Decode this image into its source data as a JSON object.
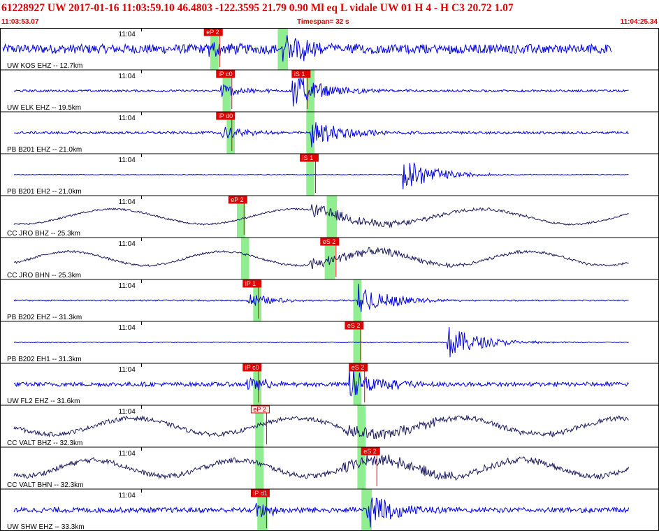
{
  "header": {
    "title": "61228927 UW 2017-01-16 11:03:59.10   46.4803 -122.3595  21.79  0.90 Ml  eq  L vidale   UW 01  H   4  -  H C3   20.72  1.07",
    "start_time": "11:03:53.07",
    "timespan": "Timespan=  32 s",
    "end_time": "11:04:25.34"
  },
  "colors": {
    "border": "#000000",
    "pick_box": "#e00000",
    "pick_box_weak": "#ffe4e4",
    "p_window": "#90ee90",
    "trace_strong": "#0000e0",
    "trace_long": "#1a1a5e"
  },
  "chart_data": {
    "type": "line",
    "title": "61228927 UW 2017-01-16 11:03:59.10",
    "time_range_s": [
      0,
      32.27
    ],
    "tick_label": "11:04",
    "tick_time_s": 6.93,
    "traces": [
      {
        "label": "UW KOS EHZ -- 12.7km",
        "pick": "eP 2",
        "pick_time_s": 10.0,
        "s_pick": "",
        "s_time_s": null,
        "window": [
          10.3,
          10.7
        ],
        "window2": [
          13.6,
          14.1
        ],
        "color": "trace_strong",
        "style": "noisy",
        "amp": 0.38,
        "noise": 0.22
      },
      {
        "label": "UW ELK EHZ -- 19.5km",
        "pick": "iP c0",
        "pick_time_s": 10.6,
        "s_pick": "iS 1",
        "s_time_s": 14.3,
        "window": [
          10.9,
          11.3
        ],
        "window2": [
          15.0,
          15.4
        ],
        "color": "trace_strong",
        "style": "arrival",
        "amp": 0.42,
        "noise": 0.05
      },
      {
        "label": "PB B201 EHZ -- 21.0km",
        "pick": "iP d0",
        "pick_time_s": 10.6,
        "s_pick": "",
        "s_time_s": null,
        "window": [
          11.1,
          11.5
        ],
        "window2": [
          15.0,
          15.4
        ],
        "color": "trace_strong",
        "style": "arrival",
        "amp": 0.38,
        "noise": 0.06
      },
      {
        "label": "PB B201 EH2 -- 21.0km",
        "pick": "iS 1",
        "pick_time_s": 14.7,
        "s_pick": "",
        "s_time_s": null,
        "window": [
          15.0,
          15.4
        ],
        "window2": null,
        "color": "trace_strong",
        "style": "sonly",
        "amp": 0.42,
        "noise": 0.02
      },
      {
        "label": "CC JRO BHZ -- 25.3km",
        "pick": "eP 2",
        "pick_time_s": 11.2,
        "s_pick": "",
        "s_time_s": null,
        "window": [
          11.6,
          12.0
        ],
        "window2": [
          16.0,
          16.5
        ],
        "color": "trace_long",
        "style": "long",
        "amp": 0.3,
        "noise": 0.04,
        "wavelen": 9.0
      },
      {
        "label": "CC JRO BHN -- 25.3km",
        "pick": "eS 2",
        "pick_time_s": 15.7,
        "s_pick": "",
        "s_time_s": null,
        "window": [
          11.8,
          12.2
        ],
        "window2": [
          15.9,
          16.4
        ],
        "color": "trace_long",
        "style": "long",
        "amp": 0.28,
        "noise": 0.05,
        "wavelen": 7.5
      },
      {
        "label": "PB B202 EHZ -- 31.3km",
        "pick": "iP 1",
        "pick_time_s": 11.9,
        "s_pick": "",
        "s_time_s": null,
        "window": [
          12.4,
          12.8
        ],
        "window2": [
          17.3,
          17.7
        ],
        "color": "trace_strong",
        "style": "arrival",
        "amp": 0.42,
        "noise": 0.03
      },
      {
        "label": "PB B202 EH1 -- 31.3km",
        "pick": "eS 2",
        "pick_time_s": 16.9,
        "s_pick": "",
        "s_time_s": null,
        "window": [
          17.3,
          17.7
        ],
        "window2": null,
        "color": "trace_strong",
        "style": "sonly",
        "amp": 0.42,
        "noise": 0.02
      },
      {
        "label": "UW FL2 EHZ -- 31.6km",
        "pick": "iP c0",
        "pick_time_s": 11.9,
        "s_pick": "eS 2",
        "s_time_s": 17.1,
        "window": [
          12.4,
          12.8
        ],
        "window2": [
          17.3,
          17.7
        ],
        "color": "trace_strong",
        "style": "arrival",
        "amp": 0.42,
        "noise": 0.1
      },
      {
        "label": "CC VALT BHZ -- 32.3km",
        "pick": "eP 2",
        "pick_time_s": 12.3,
        "s_pick": "",
        "s_time_s": null,
        "window": [
          12.5,
          12.9
        ],
        "window2": [
          17.5,
          17.9
        ],
        "color": "trace_long",
        "style": "long",
        "amp": 0.32,
        "noise": 0.1,
        "wavelen": 8.0
      },
      {
        "label": "CC VALT BHN -- 32.3km",
        "pick": "eS 2",
        "pick_time_s": 17.7,
        "s_pick": "",
        "s_time_s": null,
        "window": [
          12.5,
          12.9
        ],
        "window2": [
          17.5,
          17.9
        ],
        "color": "trace_long",
        "style": "long",
        "amp": 0.32,
        "noise": 0.12,
        "wavelen": 7.0
      },
      {
        "label": "UW SHW EHZ -- 33.3km",
        "pick": "iP d1",
        "pick_time_s": 12.3,
        "s_pick": "",
        "s_time_s": null,
        "window": [
          12.6,
          13.1
        ],
        "window2": [
          17.7,
          18.2
        ],
        "color": "trace_strong",
        "style": "arrival",
        "amp": 0.45,
        "noise": 0.12
      }
    ]
  }
}
